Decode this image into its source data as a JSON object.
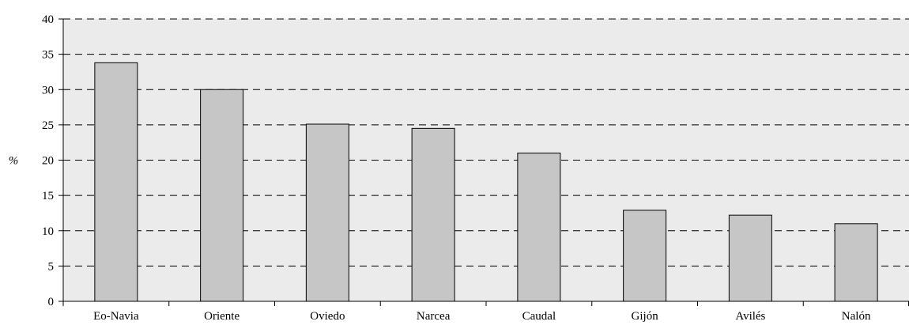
{
  "chart_data": {
    "type": "bar",
    "categories": [
      "Eo-Navia",
      "Oriente",
      "Oviedo",
      "Narcea",
      "Caudal",
      "Gijón",
      "Avilés",
      "Nalón"
    ],
    "values": [
      33.8,
      30.0,
      25.1,
      24.5,
      21.0,
      12.9,
      12.2,
      11.0
    ],
    "ylabel": "%",
    "xlabel": "",
    "ylim": [
      0,
      40
    ],
    "yticks": [
      0,
      5,
      10,
      15,
      20,
      25,
      30,
      35,
      40
    ],
    "grid": "horizontal-dashed",
    "legend": "none",
    "colors": {
      "plot_background": "#ebebeb",
      "bar_fill": "#c6c6c6",
      "bar_stroke": "#000000",
      "grid": "#000000"
    }
  }
}
